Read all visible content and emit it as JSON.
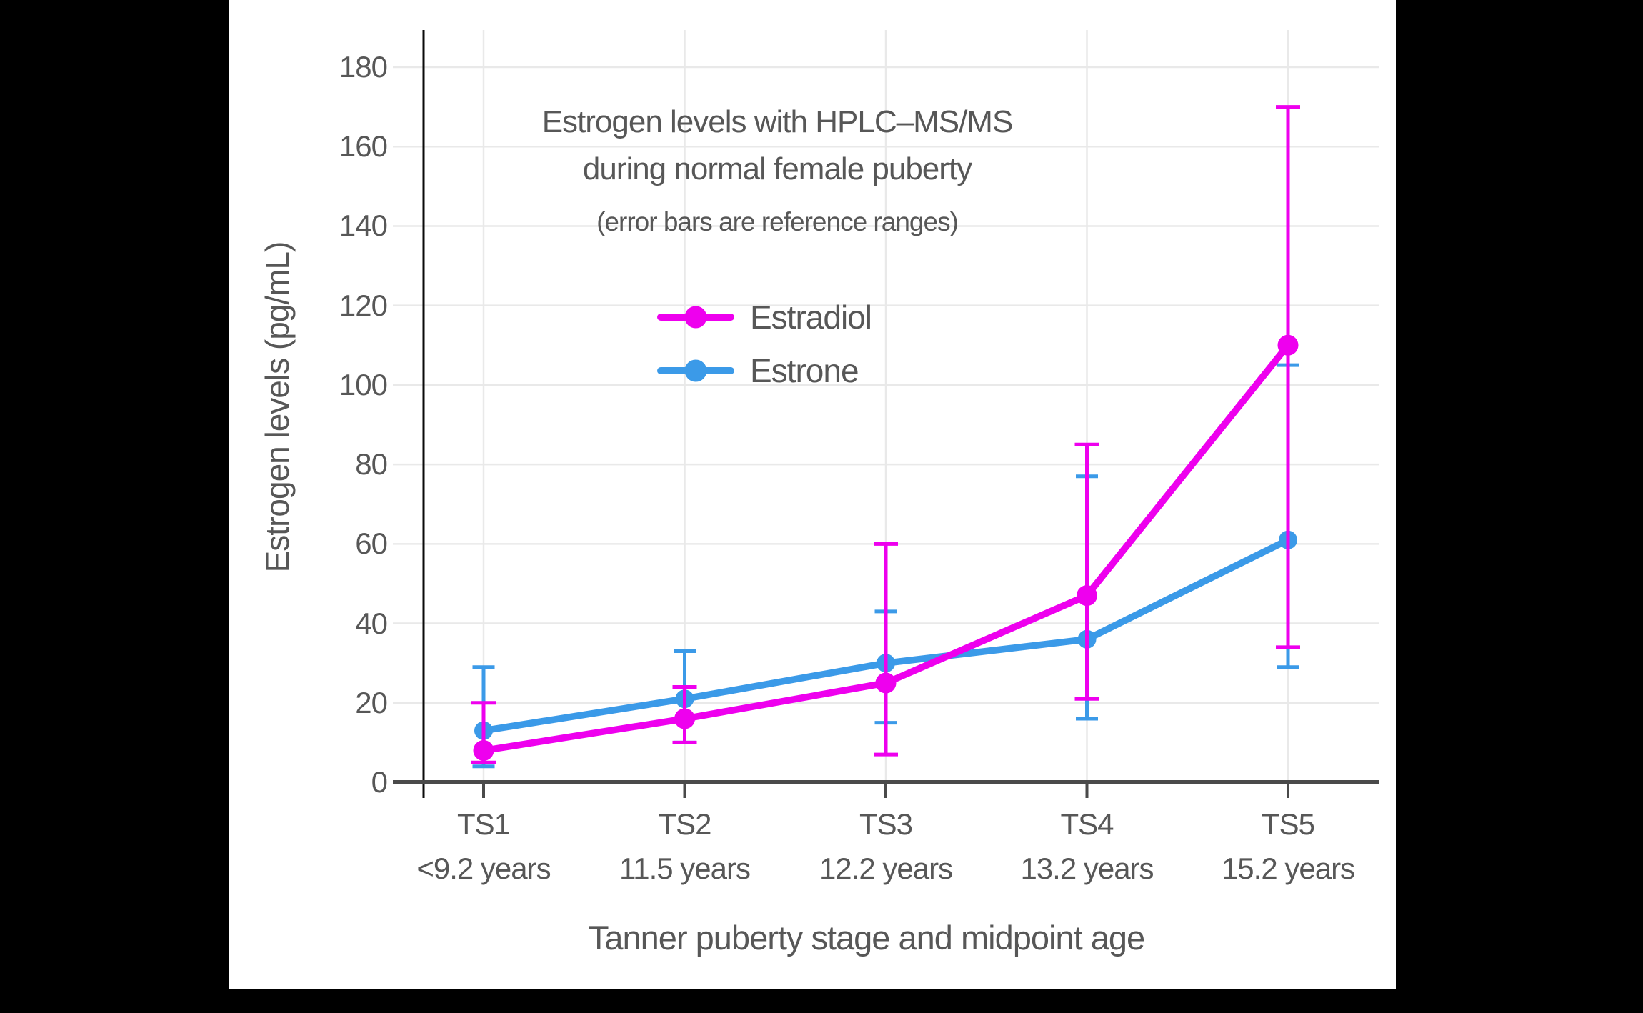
{
  "chart_data": {
    "type": "line",
    "title_lines": [
      "Estrogen levels with HPLC–MS/MS",
      "during normal female puberty"
    ],
    "subtitle": "(error bars are reference ranges)",
    "xlabel": "Tanner puberty stage and midpoint age",
    "ylabel": "Estrogen levels (pg/mL)",
    "categories": [
      "TS1",
      "TS2",
      "TS3",
      "TS4",
      "TS5"
    ],
    "category_sublabels": [
      "<9.2 years",
      "11.5 years",
      "12.2 years",
      "13.2 years",
      "15.2 years"
    ],
    "y_ticks": [
      0,
      20,
      40,
      60,
      80,
      100,
      120,
      140,
      160,
      180
    ],
    "ylim": [
      0,
      187
    ],
    "grid": true,
    "legend_position": "inside-upper-left",
    "error_bars": "reference ranges",
    "series": [
      {
        "name": "Estradiol",
        "color": "#EE00EE",
        "values": [
          8,
          16,
          25,
          47,
          110
        ],
        "error_low": [
          5,
          10,
          7,
          21,
          34
        ],
        "error_high": [
          20,
          24,
          60,
          85,
          170
        ]
      },
      {
        "name": "Estrone",
        "color": "#3B9AE8",
        "values": [
          13,
          21,
          30,
          36,
          61
        ],
        "error_low": [
          4,
          10,
          15,
          16,
          29
        ],
        "error_high": [
          29,
          33,
          43,
          77,
          105
        ]
      }
    ]
  }
}
